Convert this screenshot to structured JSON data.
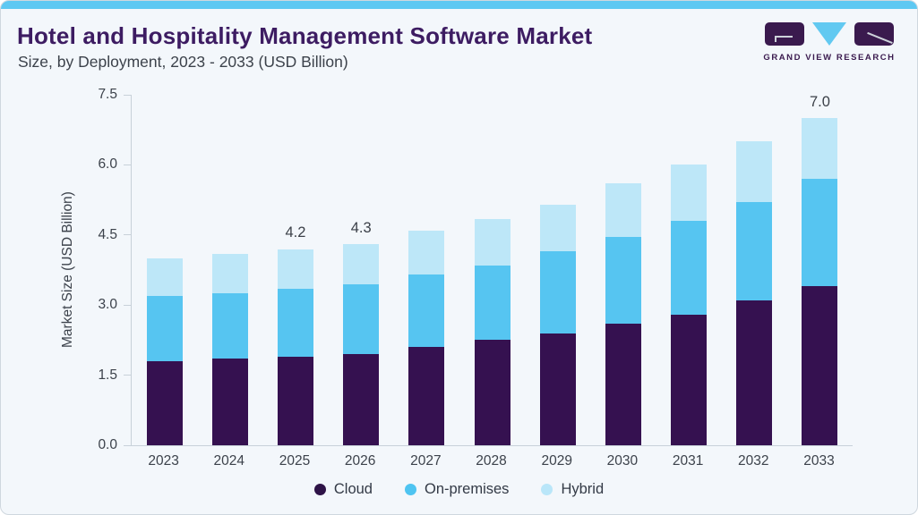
{
  "page": {
    "background_color": "#f3f7fb",
    "top_strip_color": "#5ec8f2"
  },
  "header": {
    "title": "Hotel and Hospitality Management Software Market",
    "subtitle": "Size, by Deployment, 2023 - 2033 (USD Billion)",
    "title_color": "#3d1c62"
  },
  "logo": {
    "text": "GRAND VIEW RESEARCH",
    "mark_color": "#3a1a4e",
    "triangle_color": "#62c9f1"
  },
  "chart_data": {
    "type": "bar",
    "stacked": true,
    "title": "Hotel and Hospitality Management Software Market Size, by Deployment, 2023 - 2033 (USD Billion)",
    "categories": [
      "2023",
      "2024",
      "2025",
      "2026",
      "2027",
      "2028",
      "2029",
      "2030",
      "2031",
      "2032",
      "2033"
    ],
    "series": [
      {
        "name": "Cloud",
        "color": "#351150",
        "values": [
          1.8,
          1.85,
          1.9,
          1.95,
          2.1,
          2.25,
          2.4,
          2.6,
          2.8,
          3.1,
          3.4
        ]
      },
      {
        "name": "On-premises",
        "color": "#56c5f1",
        "values": [
          1.4,
          1.4,
          1.45,
          1.5,
          1.55,
          1.6,
          1.75,
          1.85,
          2.0,
          2.1,
          2.3
        ]
      },
      {
        "name": "Hybrid",
        "color": "#bde7f8",
        "values": [
          0.8,
          0.85,
          0.85,
          0.85,
          0.95,
          1.0,
          1.0,
          1.15,
          1.2,
          1.3,
          1.3
        ]
      }
    ],
    "totals": [
      4.0,
      4.1,
      4.2,
      4.3,
      4.6,
      4.85,
      5.15,
      5.6,
      6.0,
      6.5,
      7.0
    ],
    "data_labels": [
      null,
      null,
      "4.2",
      "4.3",
      null,
      null,
      null,
      null,
      null,
      null,
      "7.0"
    ],
    "xlabel": "",
    "ylabel": "Market Size (USD Billion)",
    "ylim": [
      0,
      7.5
    ],
    "yticks": [
      "0.0",
      "1.5",
      "3.0",
      "4.5",
      "6.0",
      "7.5"
    ],
    "grid": false,
    "legend_position": "bottom"
  },
  "legend": {
    "items": [
      {
        "label": "Cloud",
        "color": "#2e1347"
      },
      {
        "label": "On-premises",
        "color": "#4ec4f1"
      },
      {
        "label": "Hybrid",
        "color": "#b9e6f9"
      }
    ]
  }
}
